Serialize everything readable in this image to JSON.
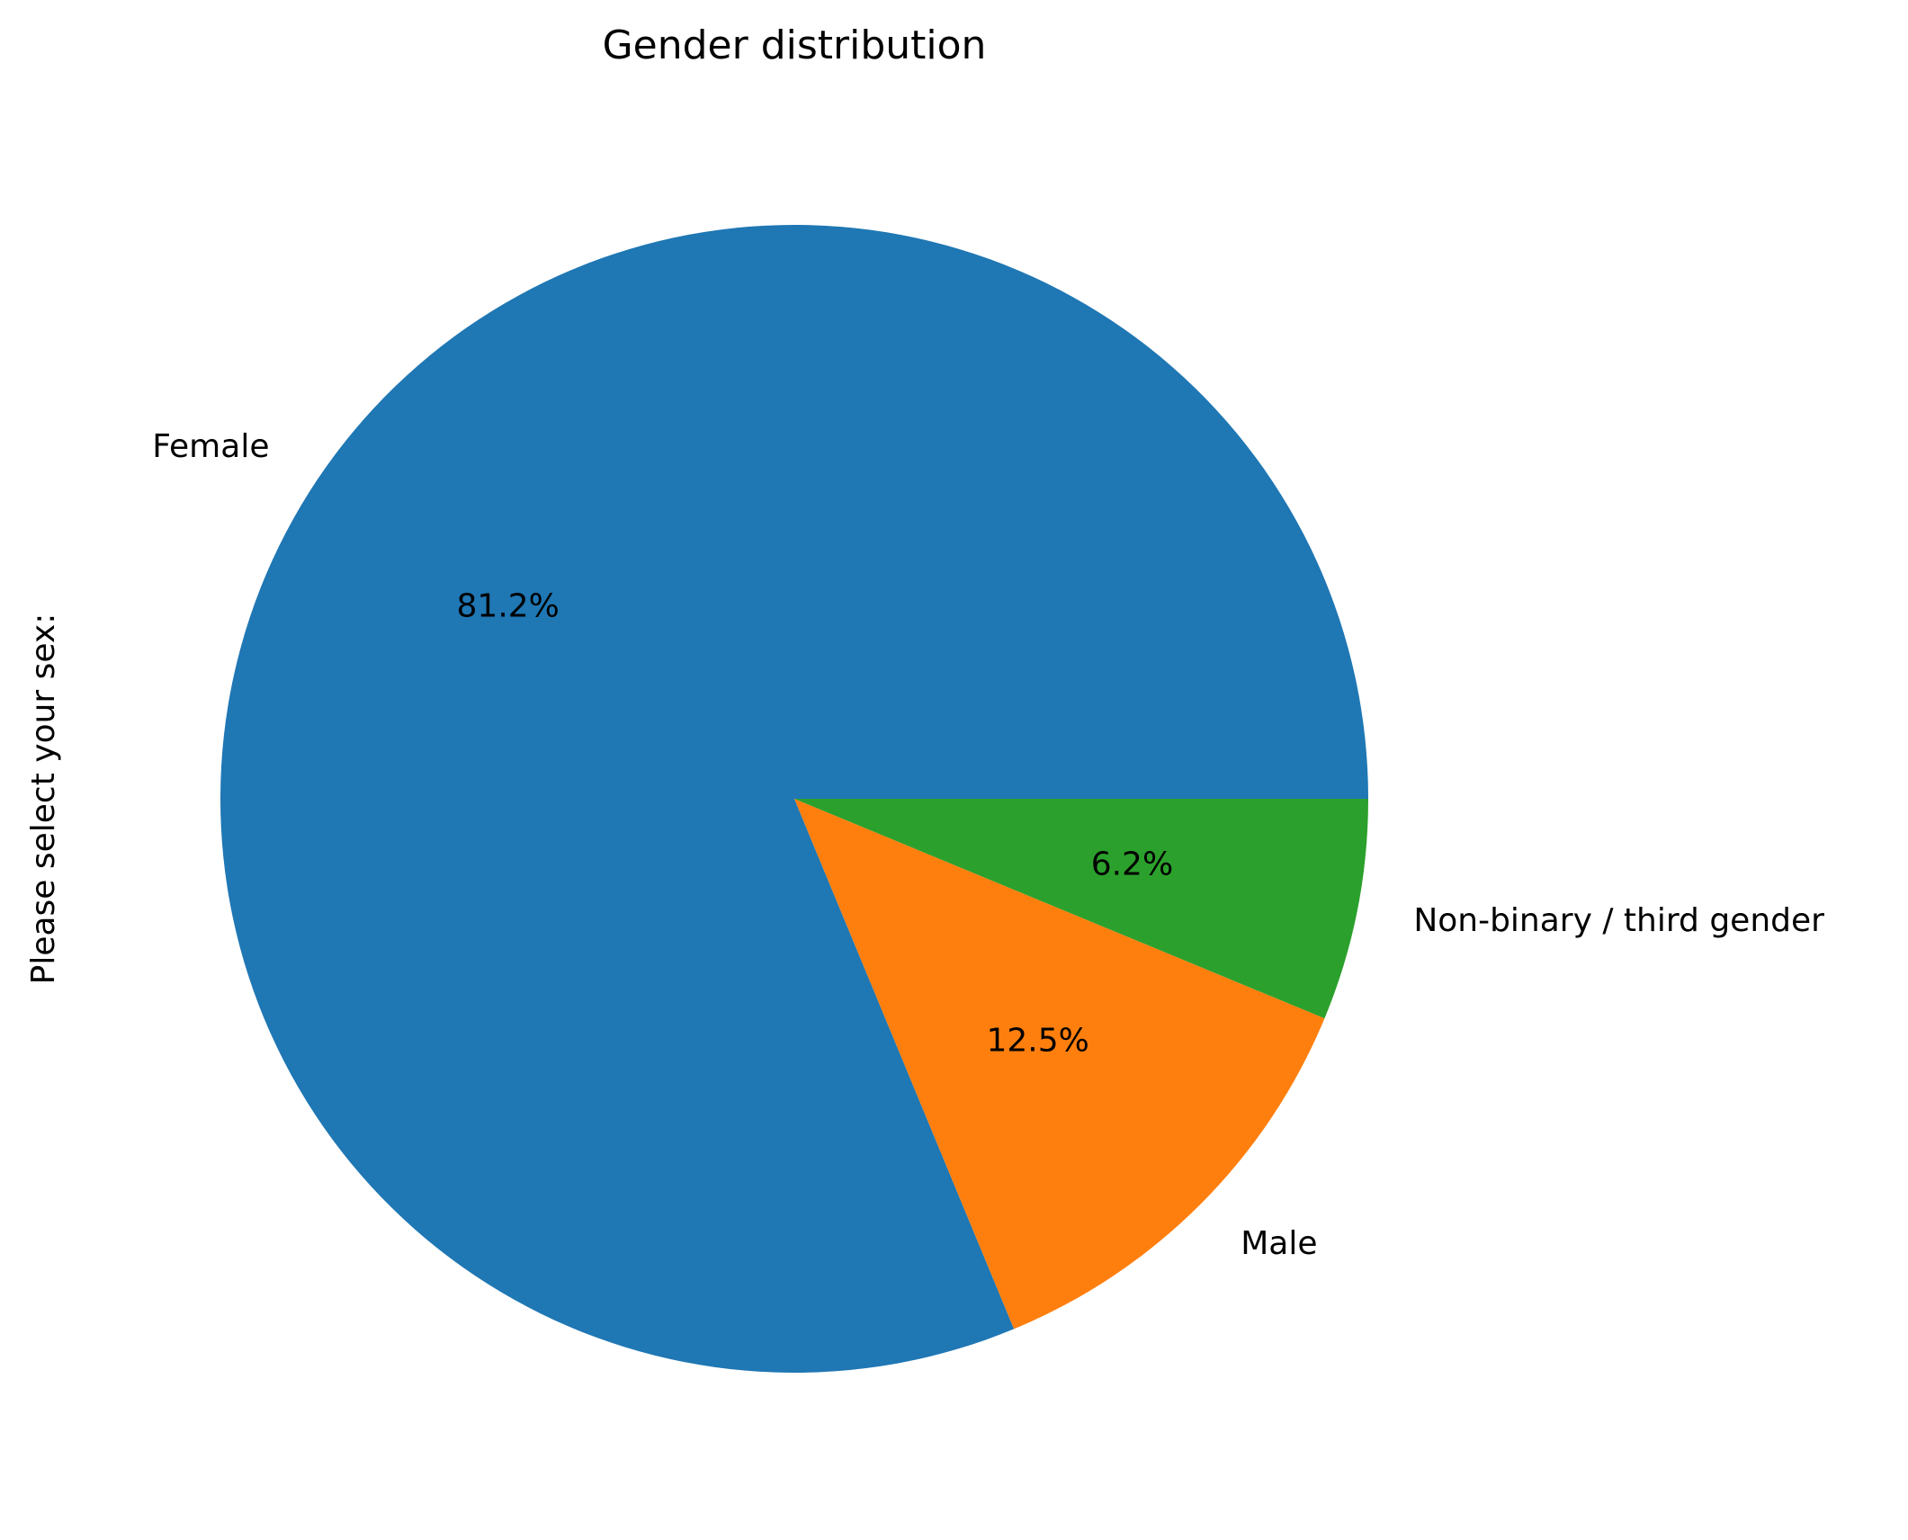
{
  "chart_data": {
    "type": "pie",
    "title": "Gender distribution",
    "ylabel": "Please select your sex:",
    "categories": [
      "Female",
      "Male",
      "Non-binary / third gender"
    ],
    "values": [
      81.25,
      12.5,
      6.25
    ],
    "autopct_labels": [
      "81.2%",
      "12.5%",
      "6.2%"
    ],
    "colors": [
      "#1f77b4",
      "#ff7f0e",
      "#2ca02c"
    ],
    "start_angle_deg": 0,
    "direction": "counterclockwise",
    "legend": "none"
  }
}
